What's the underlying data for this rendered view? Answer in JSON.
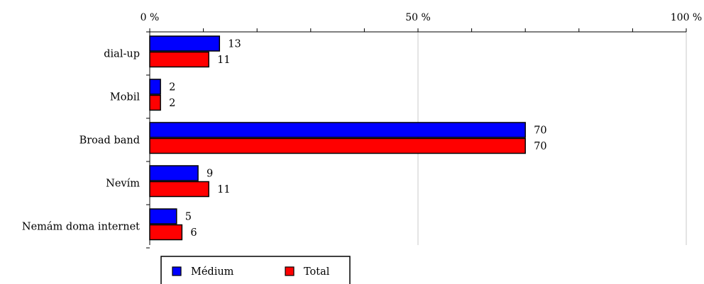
{
  "chart_data": {
    "type": "bar",
    "orientation": "horizontal",
    "categories": [
      "dial-up",
      "Mobil",
      "Broad band",
      "Nevím",
      "Nemám doma internet"
    ],
    "series": [
      {
        "name": "Médium",
        "values": [
          13,
          2,
          70,
          9,
          5
        ],
        "color": "#0000ff"
      },
      {
        "name": "Total",
        "values": [
          11,
          2,
          70,
          11,
          6
        ],
        "color": "#ff0000"
      }
    ],
    "x_ticks": [
      {
        "value": 0,
        "label": "0 %"
      },
      {
        "value": 50,
        "label": "50 %"
      },
      {
        "value": 100,
        "label": "100 %"
      }
    ],
    "xlim": [
      0,
      100
    ],
    "x_axis_position": "top",
    "grid": "vertical at major ticks",
    "legend_position": "bottom-left",
    "bar_outline_color": "#000000"
  }
}
